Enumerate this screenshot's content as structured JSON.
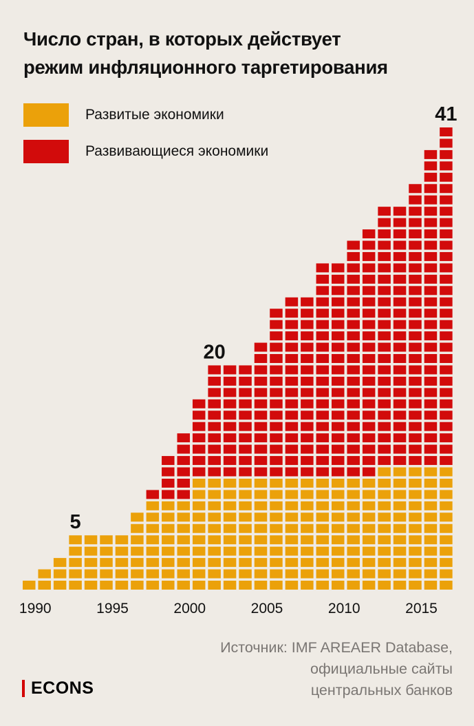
{
  "header": {
    "title_line1": "Число стран, в которых действует",
    "title_line2": "режим инфляционного таргетирования"
  },
  "legend": {
    "developed": "Развитые экономики",
    "developing": "Развивающиеся экономики"
  },
  "colors": {
    "developed": "#eba10a",
    "developing": "#d20b0b",
    "background": "#efebe5"
  },
  "source": {
    "line1": "Источник: IMF AREAER Database,",
    "line2": "официальные сайты",
    "line3": "центральных банков"
  },
  "logo": {
    "text": "ECONS"
  },
  "chart_data": {
    "type": "bar",
    "stacked": true,
    "unit_style": "stacked squares (1 square = 1 country)",
    "categories": [
      1990,
      1991,
      1992,
      1993,
      1994,
      1995,
      1996,
      1997,
      1998,
      1999,
      2000,
      2001,
      2002,
      2003,
      2004,
      2005,
      2006,
      2007,
      2008,
      2009,
      2010,
      2011,
      2012,
      2013,
      2014,
      2015,
      2016,
      2017
    ],
    "series": [
      {
        "name": "Развитые экономики",
        "values": [
          1,
          2,
          3,
          5,
          5,
          5,
          5,
          7,
          8,
          8,
          8,
          10,
          10,
          10,
          10,
          10,
          10,
          10,
          10,
          10,
          10,
          10,
          10,
          11,
          11,
          11,
          11,
          11
        ]
      },
      {
        "name": "Развивающиеся экономики",
        "values": [
          0,
          0,
          0,
          0,
          0,
          0,
          0,
          0,
          1,
          4,
          6,
          7,
          10,
          10,
          10,
          12,
          15,
          16,
          16,
          19,
          19,
          21,
          22,
          23,
          23,
          25,
          28,
          30
        ]
      }
    ],
    "totals": [
      1,
      2,
      3,
      5,
      5,
      5,
      5,
      7,
      9,
      12,
      14,
      17,
      20,
      20,
      20,
      22,
      25,
      26,
      26,
      29,
      29,
      31,
      32,
      34,
      34,
      36,
      39,
      41
    ],
    "annotations": [
      {
        "label": "5",
        "year": 1993
      },
      {
        "label": "20",
        "year": 2002
      },
      {
        "label": "41",
        "year": 2017
      }
    ],
    "x_tick_labels": [
      "1990",
      "1995",
      "2000",
      "2005",
      "2010",
      "2015"
    ],
    "x_tick_years": [
      1990,
      1995,
      2000,
      2005,
      2010,
      2015
    ],
    "ylim": [
      0,
      41
    ],
    "grid": false,
    "legend_position": "top-left"
  }
}
